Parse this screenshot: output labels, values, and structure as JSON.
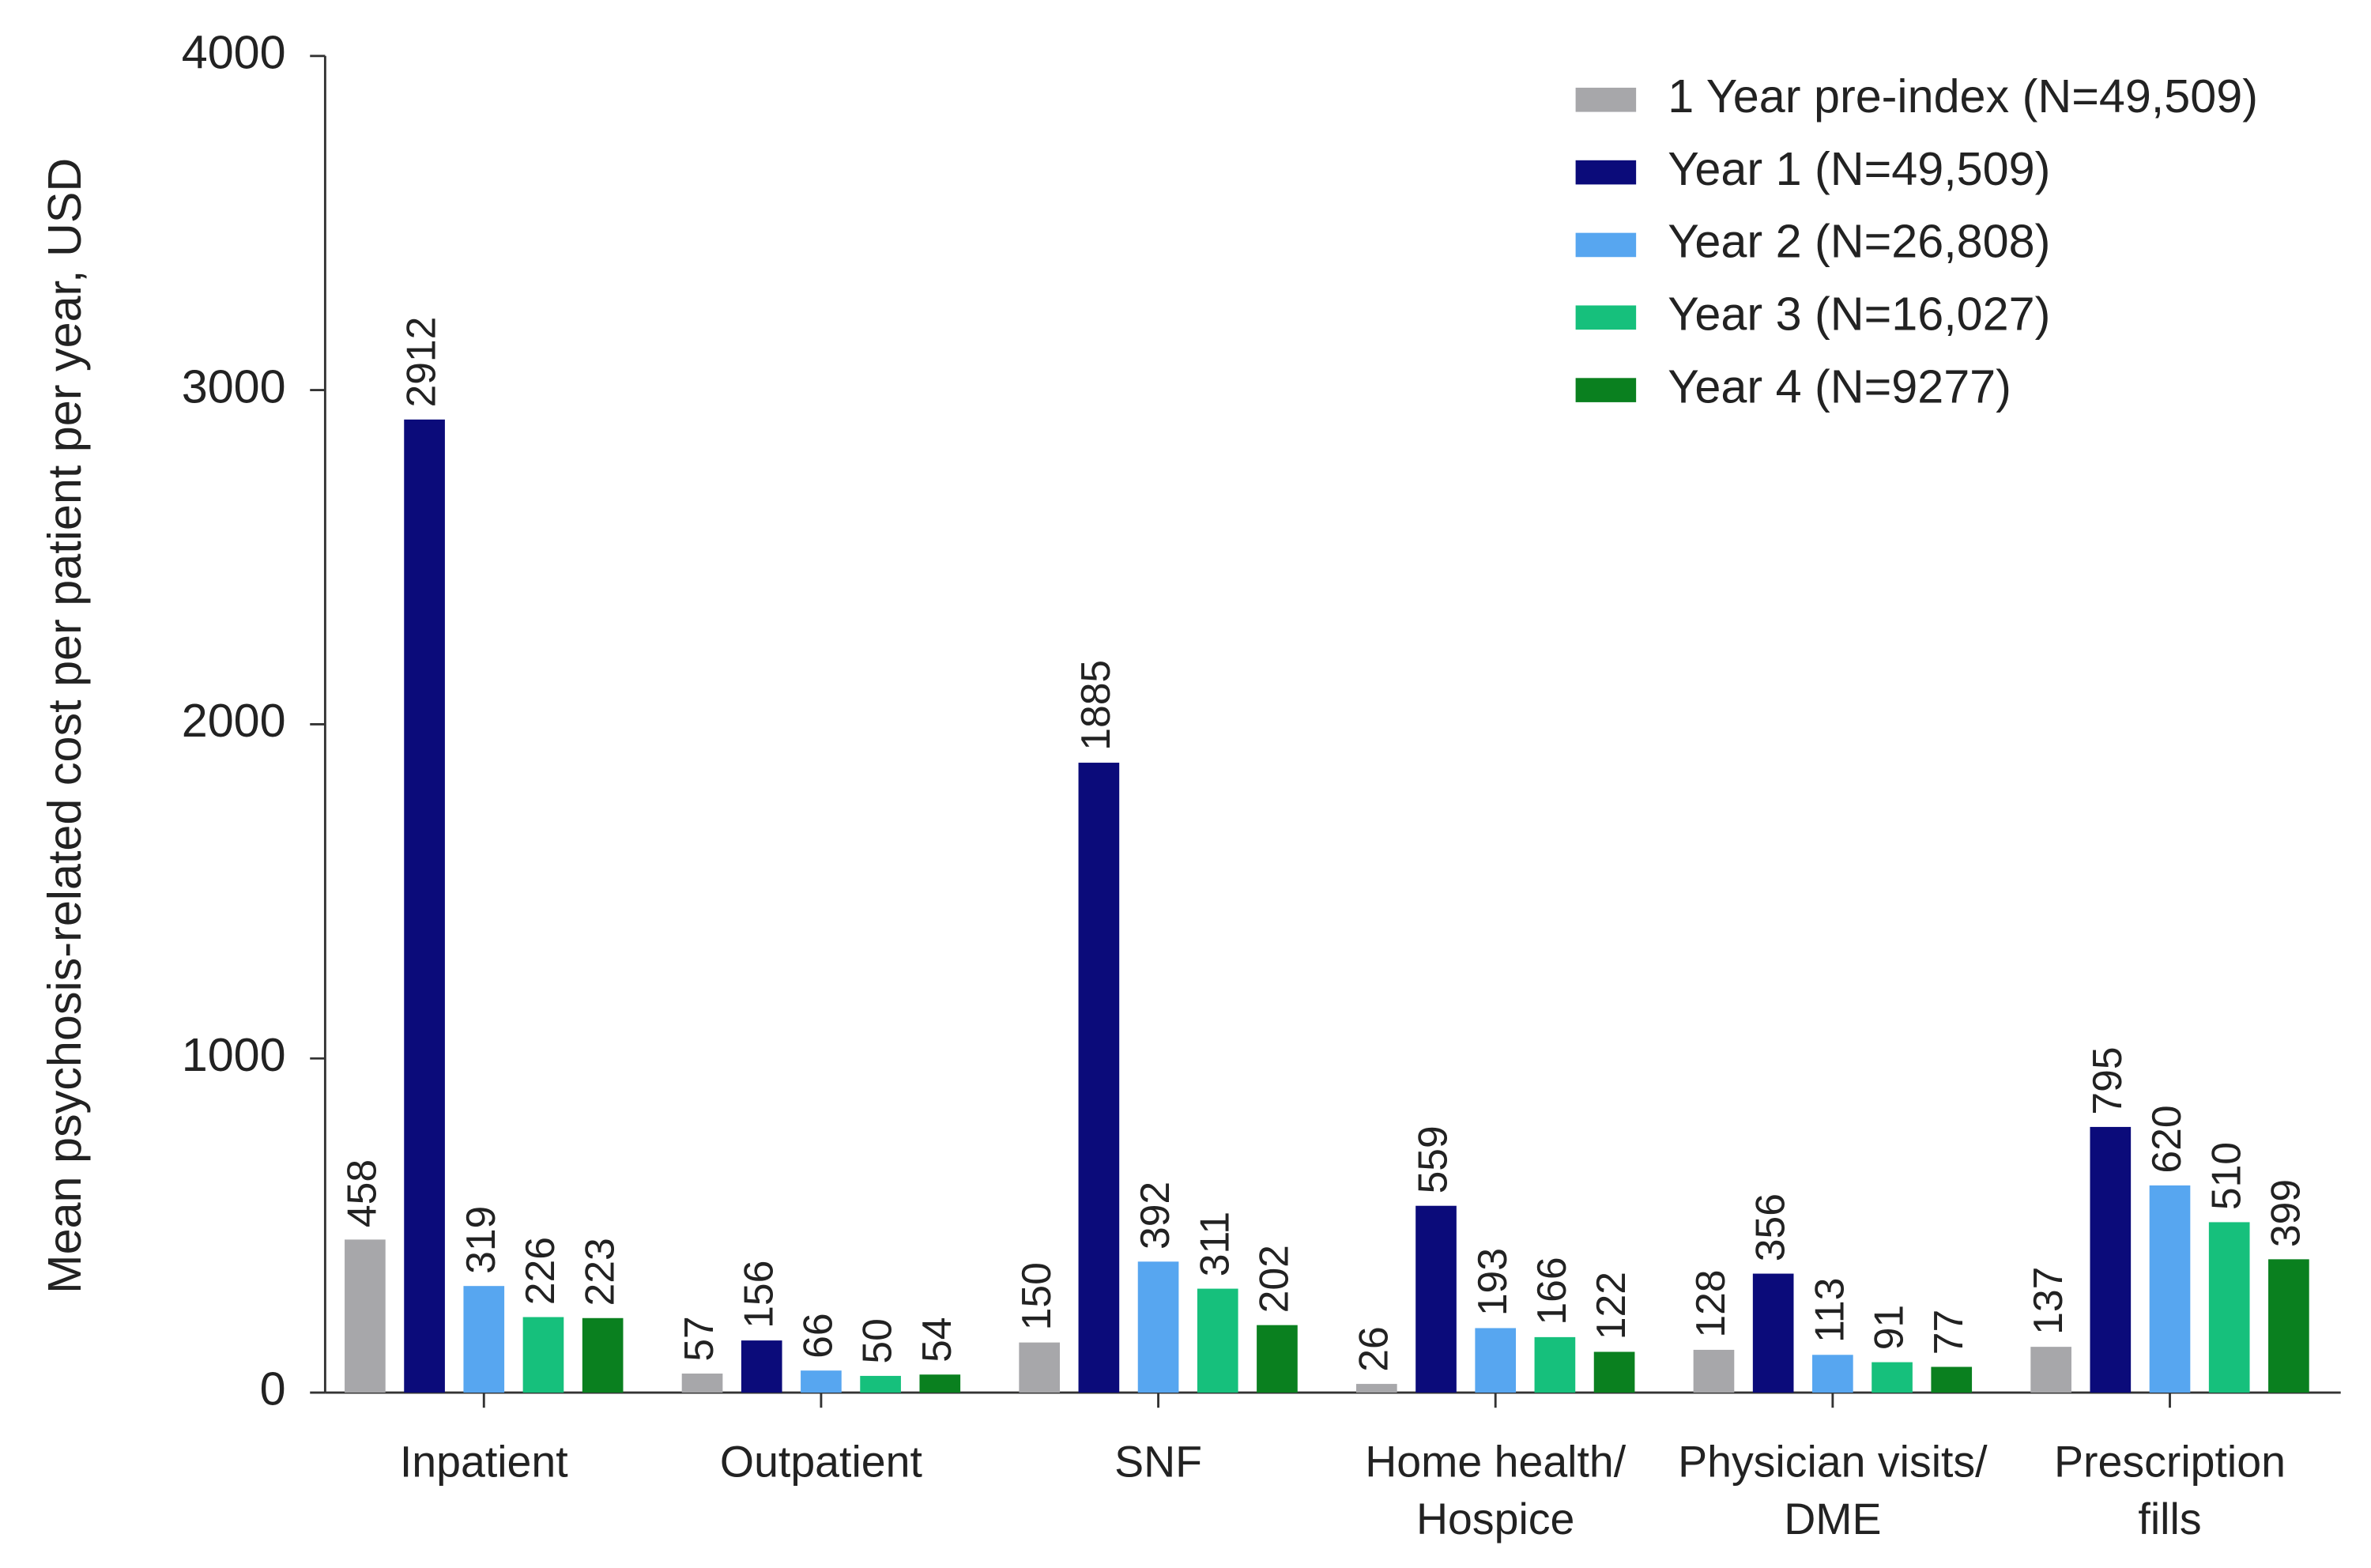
{
  "chart_data": {
    "type": "bar",
    "y_label": "Mean psychosis-related cost per patient per year, USD",
    "categories": [
      [
        "Inpatient"
      ],
      [
        "Outpatient"
      ],
      [
        "SNF"
      ],
      [
        "Home health/",
        "Hospice"
      ],
      [
        "Physician visits/",
        "DME"
      ],
      [
        "Prescription",
        "fills"
      ]
    ],
    "series": [
      {
        "name": "1 Year pre-index (N=49,509)",
        "color": "#a7a7aa",
        "values": [
          458,
          57,
          150,
          26,
          128,
          137
        ]
      },
      {
        "name": "Year 1 (N=49,509)",
        "color": "#0b0b7a",
        "values": [
          2912,
          156,
          1885,
          559,
          356,
          795
        ]
      },
      {
        "name": "Year 2 (N=26,808)",
        "color": "#57a6f0",
        "values": [
          319,
          66,
          392,
          193,
          113,
          620
        ]
      },
      {
        "name": "Year 3 (N=16,027)",
        "color": "#16c07c",
        "values": [
          226,
          50,
          311,
          166,
          91,
          510
        ]
      },
      {
        "name": "Year 4 (N=9277)",
        "color": "#0a801f",
        "values": [
          223,
          54,
          202,
          122,
          77,
          399
        ]
      }
    ],
    "ylim": [
      0,
      4000
    ],
    "yticks": [
      0,
      1000,
      2000,
      3000,
      4000
    ],
    "grid": false,
    "legend": "top-right"
  }
}
